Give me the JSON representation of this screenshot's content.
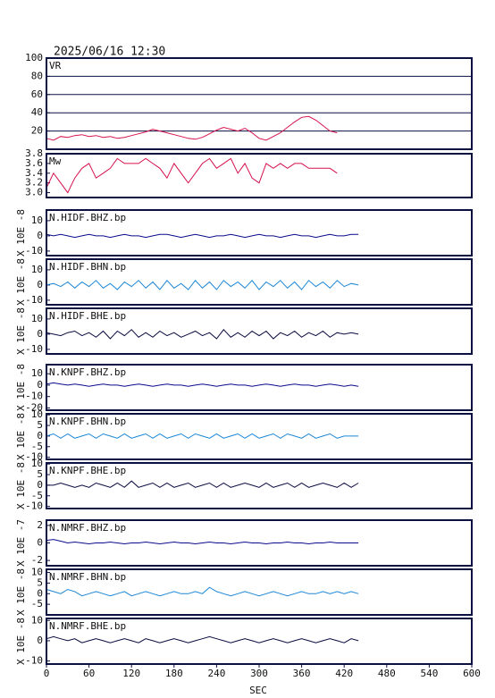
{
  "chart_data": [
    {
      "type": "line",
      "title": "2025/06/16 12:30",
      "name": "VR",
      "color": "#d6124e",
      "grid": true,
      "xlim": [
        0,
        600
      ],
      "ylim": [
        0,
        100
      ],
      "yticks": [
        20,
        40,
        60,
        80,
        100
      ],
      "x": [
        0,
        10,
        20,
        30,
        40,
        50,
        60,
        70,
        80,
        90,
        100,
        110,
        120,
        130,
        140,
        150,
        160,
        170,
        180,
        190,
        200,
        210,
        220,
        230,
        240,
        250,
        260,
        270,
        280,
        290,
        300,
        310,
        320,
        330,
        340,
        350,
        360,
        370,
        380,
        390,
        400,
        410
      ],
      "values": [
        12,
        10,
        14,
        13,
        15,
        16,
        14,
        15,
        13,
        14,
        12,
        13,
        15,
        17,
        19,
        22,
        20,
        18,
        16,
        14,
        12,
        11,
        13,
        17,
        21,
        24,
        22,
        20,
        23,
        18,
        12,
        10,
        14,
        18,
        24,
        30,
        35,
        36,
        32,
        26,
        20,
        18
      ]
    },
    {
      "type": "line",
      "name": "Mw",
      "color": "#d6124e",
      "xlim": [
        0,
        600
      ],
      "ylim": [
        2.9,
        3.8
      ],
      "yticks": [
        {
          "value": 3,
          "label": "3.0"
        },
        3.2,
        3.4,
        3.6,
        3.8
      ],
      "x": [
        0,
        10,
        20,
        30,
        40,
        50,
        60,
        70,
        80,
        90,
        100,
        110,
        120,
        130,
        140,
        150,
        160,
        170,
        180,
        190,
        200,
        210,
        220,
        230,
        240,
        250,
        260,
        270,
        280,
        290,
        300,
        310,
        320,
        330,
        340,
        350,
        360,
        370,
        380,
        390,
        400,
        410
      ],
      "values": [
        3.1,
        3.4,
        3.2,
        3.0,
        3.3,
        3.5,
        3.6,
        3.3,
        3.4,
        3.5,
        3.7,
        3.6,
        3.6,
        3.6,
        3.7,
        3.6,
        3.5,
        3.3,
        3.6,
        3.4,
        3.2,
        3.4,
        3.6,
        3.7,
        3.5,
        3.6,
        3.7,
        3.4,
        3.6,
        3.3,
        3.2,
        3.6,
        3.5,
        3.6,
        3.5,
        3.6,
        3.6,
        3.5,
        3.5,
        3.5,
        3.5,
        3.4
      ]
    },
    {
      "type": "line",
      "name": "N.HIDF.BHZ.bp",
      "ylabel": "X 10E -8",
      "color": "#0a0a8c",
      "xlim": [
        0,
        600
      ],
      "ylim": [
        -13,
        17
      ],
      "yticks": [
        10,
        0,
        -10
      ],
      "x": [
        0,
        10,
        20,
        30,
        40,
        50,
        60,
        70,
        80,
        90,
        100,
        110,
        120,
        130,
        140,
        150,
        160,
        170,
        180,
        190,
        200,
        210,
        220,
        230,
        240,
        250,
        260,
        270,
        280,
        290,
        300,
        310,
        320,
        330,
        340,
        350,
        360,
        370,
        380,
        390,
        400,
        410,
        420,
        430,
        440
      ],
      "values": [
        1,
        0,
        1,
        0,
        -1,
        0,
        1,
        0,
        0,
        -1,
        0,
        1,
        0,
        0,
        -1,
        0,
        1,
        1,
        0,
        -1,
        0,
        1,
        0,
        -1,
        0,
        0,
        1,
        0,
        -1,
        0,
        1,
        0,
        0,
        -1,
        0,
        1,
        0,
        0,
        -1,
        0,
        1,
        0,
        0,
        1,
        1
      ]
    },
    {
      "type": "line",
      "name": "N.HIDF.BHN.bp",
      "ylabel": "X 10E -8",
      "color": "#1c86d6",
      "xlim": [
        0,
        600
      ],
      "ylim": [
        -13,
        17
      ],
      "yticks": [
        10,
        0,
        -10
      ],
      "x": [
        0,
        10,
        20,
        30,
        40,
        50,
        60,
        70,
        80,
        90,
        100,
        110,
        120,
        130,
        140,
        150,
        160,
        170,
        180,
        190,
        200,
        210,
        220,
        230,
        240,
        250,
        260,
        270,
        280,
        290,
        300,
        310,
        320,
        330,
        340,
        350,
        360,
        370,
        380,
        390,
        400,
        410,
        420,
        430,
        440
      ],
      "values": [
        0,
        1,
        -1,
        2,
        -2,
        2,
        -1,
        3,
        -2,
        1,
        -3,
        2,
        -1,
        3,
        -2,
        2,
        -3,
        3,
        -2,
        1,
        -3,
        3,
        -2,
        2,
        -3,
        3,
        -1,
        2,
        -2,
        3,
        -3,
        2,
        -1,
        3,
        -2,
        2,
        -3,
        3,
        -1,
        2,
        -2,
        3,
        -1,
        1,
        0
      ]
    },
    {
      "type": "line",
      "name": "N.HIDF.BHE.bp",
      "ylabel": "X 10E -8",
      "color": "#0a0a40",
      "xlim": [
        0,
        600
      ],
      "ylim": [
        -13,
        17
      ],
      "yticks": [
        10,
        0,
        -10
      ],
      "x": [
        0,
        10,
        20,
        30,
        40,
        50,
        60,
        70,
        80,
        90,
        100,
        110,
        120,
        130,
        140,
        150,
        160,
        170,
        180,
        190,
        200,
        210,
        220,
        230,
        240,
        250,
        260,
        270,
        280,
        290,
        300,
        310,
        320,
        330,
        340,
        350,
        360,
        370,
        380,
        390,
        400,
        410,
        420,
        430,
        440
      ],
      "values": [
        1,
        0,
        -1,
        1,
        2,
        -1,
        1,
        -2,
        2,
        -3,
        2,
        -1,
        3,
        -2,
        1,
        -2,
        2,
        -1,
        1,
        -2,
        0,
        2,
        -1,
        1,
        -3,
        3,
        -2,
        1,
        -2,
        2,
        -1,
        2,
        -3,
        1,
        -1,
        2,
        -2,
        1,
        -1,
        2,
        -2,
        1,
        0,
        1,
        0
      ]
    },
    {
      "type": "line",
      "name": "N.KNPF.BHZ.bp",
      "ylabel": "X 10E -8",
      "color": "#0a0a8c",
      "xlim": [
        0,
        600
      ],
      "ylim": [
        -22,
        18
      ],
      "yticks": [
        10,
        0,
        -10,
        -20
      ],
      "x": [
        0,
        10,
        20,
        30,
        40,
        50,
        60,
        70,
        80,
        90,
        100,
        110,
        120,
        130,
        140,
        150,
        160,
        170,
        180,
        190,
        200,
        210,
        220,
        230,
        240,
        250,
        260,
        270,
        280,
        290,
        300,
        310,
        320,
        330,
        340,
        350,
        360,
        370,
        380,
        390,
        400,
        410,
        420,
        430,
        440
      ],
      "values": [
        1,
        2,
        1,
        0,
        1,
        0,
        -1,
        0,
        1,
        0,
        0,
        -1,
        0,
        1,
        0,
        -1,
        0,
        1,
        0,
        0,
        -1,
        0,
        1,
        0,
        -1,
        0,
        1,
        0,
        0,
        -1,
        0,
        1,
        0,
        -1,
        0,
        1,
        0,
        0,
        -1,
        0,
        1,
        0,
        -1,
        0,
        -1
      ]
    },
    {
      "type": "line",
      "name": "N.KNPF.BHN.bp",
      "ylabel": "X 10E -8",
      "color": "#1c86d6",
      "xlim": [
        0,
        600
      ],
      "ylim": [
        -11,
        10.5
      ],
      "yticks": [
        10,
        5,
        0,
        -5,
        -10
      ],
      "x": [
        0,
        10,
        20,
        30,
        40,
        50,
        60,
        70,
        80,
        90,
        100,
        110,
        120,
        130,
        140,
        150,
        160,
        170,
        180,
        190,
        200,
        210,
        220,
        230,
        240,
        250,
        260,
        270,
        280,
        290,
        300,
        310,
        320,
        330,
        340,
        350,
        360,
        370,
        380,
        390,
        400,
        410,
        420,
        430,
        440
      ],
      "values": [
        0,
        1,
        -1,
        1,
        -1,
        0,
        1,
        -1,
        1,
        0,
        -1,
        1,
        -1,
        0,
        1,
        -1,
        1,
        -1,
        0,
        1,
        -1,
        1,
        0,
        -1,
        1,
        -1,
        0,
        1,
        -1,
        1,
        -1,
        0,
        1,
        -1,
        1,
        0,
        -1,
        1,
        -1,
        0,
        1,
        -1,
        0,
        0,
        0
      ]
    },
    {
      "type": "line",
      "name": "N.KNPF.BHE.bp",
      "ylabel": "X 10E -8",
      "color": "#0a0a40",
      "xlim": [
        0,
        600
      ],
      "ylim": [
        -11,
        10.5
      ],
      "yticks": [
        10,
        5,
        0,
        -5,
        -10
      ],
      "x": [
        0,
        10,
        20,
        30,
        40,
        50,
        60,
        70,
        80,
        90,
        100,
        110,
        120,
        130,
        140,
        150,
        160,
        170,
        180,
        190,
        200,
        210,
        220,
        230,
        240,
        250,
        260,
        270,
        280,
        290,
        300,
        310,
        320,
        330,
        340,
        350,
        360,
        370,
        380,
        390,
        400,
        410,
        420,
        430,
        440
      ],
      "values": [
        0,
        0,
        1,
        0,
        -1,
        0,
        -1,
        1,
        0,
        -1,
        1,
        -1,
        2,
        -1,
        0,
        1,
        -1,
        1,
        -1,
        0,
        1,
        -1,
        0,
        1,
        -1,
        1,
        -1,
        0,
        1,
        0,
        -1,
        1,
        -1,
        0,
        1,
        -1,
        1,
        -1,
        0,
        1,
        0,
        -1,
        1,
        -1,
        1
      ]
    },
    {
      "type": "line",
      "name": "N.NMRF.BHZ.bp",
      "ylabel": "X 10E -7",
      "color": "#0a0a8c",
      "xlim": [
        0,
        600
      ],
      "ylim": [
        -2.6,
        2.6
      ],
      "yticks": [
        2,
        0,
        -2
      ],
      "x": [
        0,
        10,
        20,
        30,
        40,
        50,
        60,
        70,
        80,
        90,
        100,
        110,
        120,
        130,
        140,
        150,
        160,
        170,
        180,
        190,
        200,
        210,
        220,
        230,
        240,
        250,
        260,
        270,
        280,
        290,
        300,
        310,
        320,
        330,
        340,
        350,
        360,
        370,
        380,
        390,
        400,
        410,
        420,
        430,
        440
      ],
      "values": [
        0.3,
        0.4,
        0.2,
        0,
        0.1,
        0,
        -0.1,
        0,
        0,
        0.1,
        0,
        -0.1,
        0,
        0,
        0.1,
        0,
        -0.1,
        0,
        0.1,
        0,
        0,
        -0.1,
        0,
        0.1,
        0,
        0,
        -0.1,
        0,
        0.1,
        0,
        0,
        -0.1,
        0,
        0,
        0.1,
        0,
        0,
        -0.1,
        0,
        0,
        0.1,
        0,
        0,
        0,
        0
      ]
    },
    {
      "type": "line",
      "name": "N.NMRF.BHN.bp",
      "ylabel": "X 10E -8",
      "color": "#1c86d6",
      "xlim": [
        0,
        600
      ],
      "ylim": [
        -10,
        11.5
      ],
      "yticks": [
        10,
        5,
        0,
        -5
      ],
      "x": [
        0,
        10,
        20,
        30,
        40,
        50,
        60,
        70,
        80,
        90,
        100,
        110,
        120,
        130,
        140,
        150,
        160,
        170,
        180,
        190,
        200,
        210,
        220,
        230,
        240,
        250,
        260,
        270,
        280,
        290,
        300,
        310,
        320,
        330,
        340,
        350,
        360,
        370,
        380,
        390,
        400,
        410,
        420,
        430,
        440
      ],
      "values": [
        2,
        1,
        0,
        2,
        1,
        -1,
        0,
        1,
        0,
        -1,
        0,
        1,
        -1,
        0,
        1,
        0,
        -1,
        0,
        1,
        0,
        0,
        1,
        0,
        3,
        1,
        0,
        -1,
        0,
        1,
        0,
        -1,
        0,
        1,
        0,
        -1,
        0,
        1,
        0,
        0,
        1,
        0,
        1,
        0,
        1,
        0
      ]
    },
    {
      "type": "line",
      "name": "N.NMRF.BHE.bp",
      "ylabel": "X 10E -8",
      "color": "#0a0a40",
      "xlim": [
        0,
        600
      ],
      "ylim": [
        -11.5,
        11
      ],
      "yticks": [
        10,
        0,
        -10
      ],
      "xlabel": "SEC",
      "xticks": [
        0,
        60,
        120,
        180,
        240,
        300,
        360,
        420,
        480,
        540,
        600
      ],
      "x": [
        0,
        10,
        20,
        30,
        40,
        50,
        60,
        70,
        80,
        90,
        100,
        110,
        120,
        130,
        140,
        150,
        160,
        170,
        180,
        190,
        200,
        210,
        220,
        230,
        240,
        250,
        260,
        270,
        280,
        290,
        300,
        310,
        320,
        330,
        340,
        350,
        360,
        370,
        380,
        390,
        400,
        410,
        420,
        430,
        440
      ],
      "values": [
        1,
        2,
        1,
        0,
        1,
        -1,
        0,
        1,
        0,
        -1,
        0,
        1,
        0,
        -1,
        1,
        0,
        -1,
        0,
        1,
        0,
        -1,
        0,
        1,
        2,
        1,
        0,
        -1,
        0,
        1,
        0,
        -1,
        0,
        1,
        0,
        -1,
        0,
        1,
        0,
        -1,
        0,
        1,
        0,
        -1,
        1,
        0
      ]
    }
  ]
}
